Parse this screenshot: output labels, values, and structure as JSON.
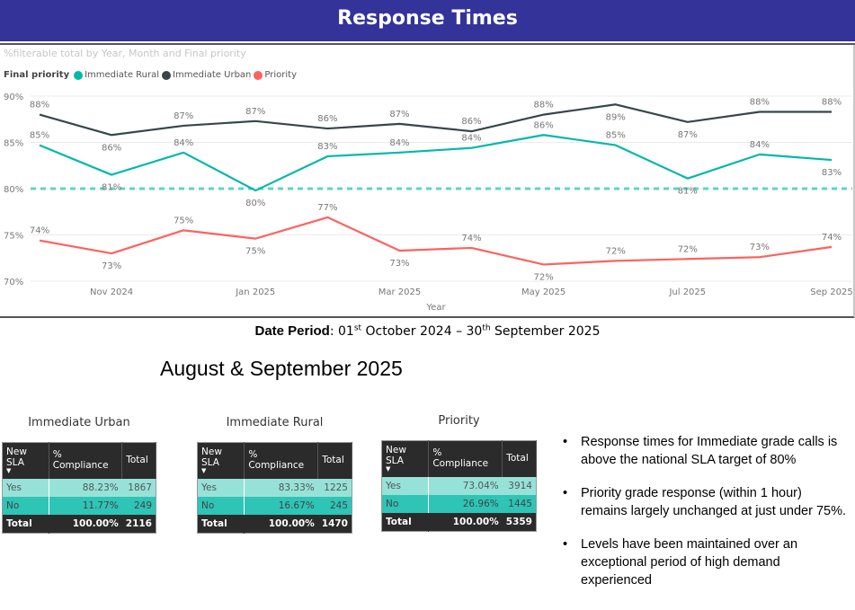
{
  "header": {
    "title": "Response Times"
  },
  "chart_subtitle": "%filterable total by Year, Month and Final priority",
  "legend": {
    "title": "Final priority",
    "items": [
      {
        "label": "Immediate Rural",
        "color": "#01b8aa"
      },
      {
        "label": "Immediate Urban",
        "color": "#374649"
      },
      {
        "label": "Priority",
        "color": "#fd625e"
      }
    ]
  },
  "chart_data": {
    "type": "line",
    "title": "%filterable total by Year, Month and Final priority",
    "xlabel": "Year",
    "ylabel": "",
    "ylim": [
      70,
      90
    ],
    "yticks": [
      "70%",
      "75%",
      "80%",
      "85%",
      "90%"
    ],
    "ytick_values": [
      70,
      75,
      80,
      85,
      90
    ],
    "x": [
      "Oct 2024",
      "Nov 2024",
      "Dec 2024",
      "Jan 2025",
      "Feb 2025",
      "Mar 2025",
      "Apr 2025",
      "May 2025",
      "Jun 2025",
      "Jul 2025",
      "Aug 2025",
      "Sep 2025"
    ],
    "xtick_labels": [
      {
        "index": 1,
        "label": "Nov 2024"
      },
      {
        "index": 3,
        "label": "Jan 2025"
      },
      {
        "index": 5,
        "label": "Mar 2025"
      },
      {
        "index": 7,
        "label": "May 2025"
      },
      {
        "index": 9,
        "label": "Jul 2025"
      },
      {
        "index": 11,
        "label": "Sep 2025"
      }
    ],
    "grid": true,
    "legend_position": "top-left",
    "reference_line": {
      "value": 80,
      "color": "#5fd3c7",
      "style": "dashed"
    },
    "series": [
      {
        "name": "Immediate Urban",
        "color": "#374649",
        "values": [
          88.0,
          85.8,
          86.8,
          87.3,
          86.5,
          87.0,
          86.2,
          88.0,
          89.1,
          87.2,
          88.3,
          88.3
        ],
        "labels": [
          "88%",
          "86%",
          "87%",
          "87%",
          "86%",
          "87%",
          "86%",
          "88%",
          "89%",
          "87%",
          "88%",
          "88%"
        ],
        "label_pos": [
          "above",
          "below",
          "above",
          "above",
          "above",
          "above",
          "above",
          "above",
          "below",
          "below",
          "above",
          "above"
        ]
      },
      {
        "name": "Immediate Rural",
        "color": "#01b8aa",
        "values": [
          84.7,
          81.5,
          83.9,
          79.8,
          83.5,
          83.9,
          84.4,
          85.8,
          84.7,
          81.1,
          83.7,
          83.1
        ],
        "labels": [
          "85%",
          "81%",
          "84%",
          "80%",
          "83%",
          "84%",
          "84%",
          "86%",
          "85%",
          "81%",
          "84%",
          "83%"
        ],
        "label_pos": [
          "above",
          "below",
          "above",
          "below",
          "above",
          "above",
          "above",
          "above",
          "above",
          "below",
          "above",
          "below"
        ]
      },
      {
        "name": "Priority",
        "color": "#fd625e",
        "values": [
          74.4,
          73.0,
          75.5,
          74.6,
          76.9,
          73.3,
          73.6,
          71.8,
          72.2,
          72.4,
          72.6,
          73.7
        ],
        "labels": [
          "74%",
          "73%",
          "75%",
          "75%",
          "77%",
          "73%",
          "74%",
          "72%",
          "72%",
          "72%",
          "73%",
          "74%"
        ],
        "label_pos": [
          "above",
          "below",
          "above",
          "below",
          "above",
          "below",
          "above",
          "below",
          "above",
          "above",
          "above",
          "above"
        ]
      }
    ]
  },
  "date_period": {
    "label": "Date Period",
    "start_day": "01",
    "start_suffix": "st",
    "start_rest": "October 2024 – 30",
    "end_suffix": "th",
    "end_rest": "September 2025"
  },
  "section_title": "August & September 2025",
  "tables": [
    {
      "title": "Immediate Urban",
      "headers": [
        "New SLA",
        "% Compliance",
        "Total"
      ],
      "rows": [
        {
          "sla": "Yes",
          "compliance": "88.23%",
          "total": "1867"
        },
        {
          "sla": "No",
          "compliance": "11.77%",
          "total": "249"
        }
      ],
      "footer": {
        "sla": "Total",
        "compliance": "100.00%",
        "total": "2116"
      }
    },
    {
      "title": "Immediate Rural",
      "headers": [
        "New SLA",
        "% Compliance",
        "Total"
      ],
      "rows": [
        {
          "sla": "Yes",
          "compliance": "83.33%",
          "total": "1225"
        },
        {
          "sla": "No",
          "compliance": "16.67%",
          "total": "245"
        }
      ],
      "footer": {
        "sla": "Total",
        "compliance": "100.00%",
        "total": "1470"
      }
    },
    {
      "title": "Priority",
      "headers": [
        "New SLA",
        "% Compliance",
        "Total"
      ],
      "rows": [
        {
          "sla": "Yes",
          "compliance": "73.04%",
          "total": "3914"
        },
        {
          "sla": "No",
          "compliance": "26.96%",
          "total": "1445"
        }
      ],
      "footer": {
        "sla": "Total",
        "compliance": "100.00%",
        "total": "5359"
      }
    }
  ],
  "bullets": [
    "Response times for Immediate grade calls is above the national SLA target of 80%",
    "Priority grade response (within 1 hour) remains largely unchanged at just under 75%.",
    "Levels have been maintained over an exceptional period of high demand experienced"
  ]
}
